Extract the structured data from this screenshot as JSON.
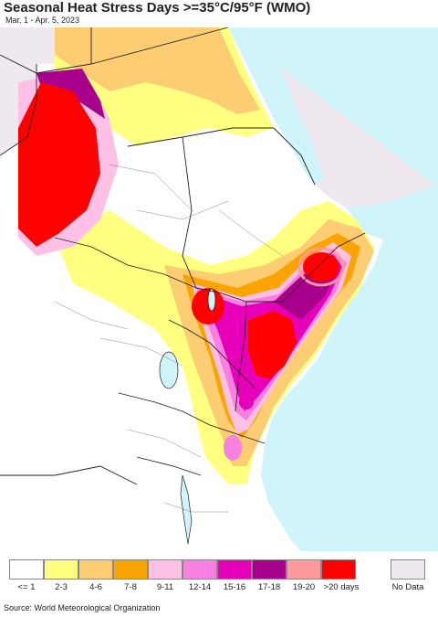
{
  "header": {
    "title": "Seasonal Heat Stress Days >=35°C/95°F (WMO)",
    "date_range": "Mar. 1 - Apr. 5, 2023"
  },
  "legend": {
    "items": [
      {
        "label": "<= 1",
        "color": "#ffffff"
      },
      {
        "label": "2-3",
        "color": "#ffff80"
      },
      {
        "label": "4-6",
        "color": "#fdcd73"
      },
      {
        "label": "7-8",
        "color": "#f9a400"
      },
      {
        "label": "9-11",
        "color": "#ffc0e6"
      },
      {
        "label": "12-14",
        "color": "#f780e0"
      },
      {
        "label": "15-16",
        "color": "#e600b8"
      },
      {
        "label": "17-18",
        "color": "#a8008c"
      },
      {
        "label": "19-20",
        "color": "#ff9a9a"
      },
      {
        "label": ">20 days",
        "color": "#ff0000"
      }
    ],
    "no_data": {
      "label": "No Data",
      "color": "#efe8ee"
    }
  },
  "footer": {
    "source": "Source: World Meteorological Organization"
  },
  "colors": {
    "sea": "#cff5fb",
    "outside_region": "#efe8ee",
    "boundary": "#222222"
  }
}
